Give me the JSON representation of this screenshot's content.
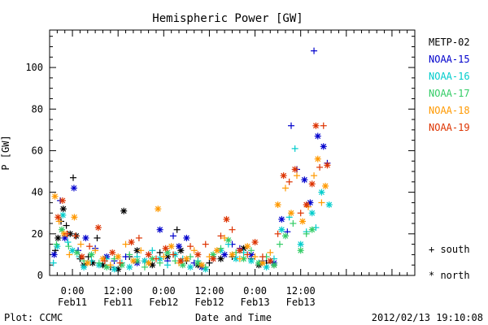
{
  "chart_data": {
    "type": "scatter",
    "title": "Hemispheric Power [GW]",
    "ylabel": "P [GW]",
    "xlabel": "Date and Time",
    "ylim": [
      0,
      118
    ],
    "xlim": [
      -6,
      90
    ],
    "yticks": [
      0,
      20,
      40,
      60,
      80,
      100
    ],
    "xticks": [
      {
        "x": 0,
        "time": "0:00",
        "day": "Feb11"
      },
      {
        "x": 12,
        "time": "12:00",
        "day": "Feb11"
      },
      {
        "x": 24,
        "time": "0:00",
        "day": "Feb12"
      },
      {
        "x": 36,
        "time": "12:00",
        "day": "Feb12"
      },
      {
        "x": 48,
        "time": "0:00",
        "day": "Feb13"
      },
      {
        "x": 60,
        "time": "12:00",
        "day": "Feb13"
      }
    ],
    "x_unit_note": "hours relative to 2012-02-11 00:00 UT",
    "series": [
      {
        "name": "METP-02",
        "color": "#000000",
        "points": [
          [
            -4.5,
            12,
            "s"
          ],
          [
            -3.8,
            18,
            "n"
          ],
          [
            -3,
            26,
            "s"
          ],
          [
            -2.4,
            32,
            "n"
          ],
          [
            -1.6,
            24,
            "s"
          ],
          [
            -0.6,
            20,
            "n"
          ],
          [
            0.2,
            47,
            "s"
          ],
          [
            1,
            19,
            "n"
          ],
          [
            2,
            8,
            "s"
          ],
          [
            3,
            5,
            "n"
          ],
          [
            4.2,
            9,
            "s"
          ],
          [
            5.3,
            6,
            "n"
          ],
          [
            6.5,
            18,
            "s"
          ],
          [
            8,
            5,
            "n"
          ],
          [
            10,
            4,
            "s"
          ],
          [
            12,
            3,
            "n"
          ],
          [
            13.5,
            31,
            "n"
          ],
          [
            15,
            9,
            "s"
          ],
          [
            17,
            12,
            "n"
          ],
          [
            19,
            7,
            "s"
          ],
          [
            21,
            5,
            "n"
          ],
          [
            23,
            11,
            "s"
          ],
          [
            25,
            9,
            "n"
          ],
          [
            27.5,
            22,
            "s"
          ],
          [
            28.5,
            12,
            "n"
          ],
          [
            30,
            7,
            "s"
          ],
          [
            33,
            5,
            "n"
          ],
          [
            36,
            6,
            "s"
          ],
          [
            39,
            8,
            "n"
          ],
          [
            42,
            9,
            "s"
          ],
          [
            45,
            13,
            "n"
          ],
          [
            47,
            8,
            "s"
          ],
          [
            49,
            5,
            "n"
          ],
          [
            51,
            6,
            "s"
          ],
          [
            53,
            5,
            "n"
          ]
        ]
      },
      {
        "name": "NOAA-15",
        "color": "#0000cc",
        "points": [
          [
            -4.8,
            10,
            "n"
          ],
          [
            -3.2,
            36,
            "s"
          ],
          [
            -2,
            18,
            "n"
          ],
          [
            0.4,
            42,
            "n"
          ],
          [
            1.5,
            12,
            "s"
          ],
          [
            3.5,
            18,
            "n"
          ],
          [
            6,
            13,
            "s"
          ],
          [
            9,
            9,
            "n"
          ],
          [
            11,
            7,
            "s"
          ],
          [
            14,
            9,
            "s"
          ],
          [
            17,
            6,
            "n"
          ],
          [
            20,
            10,
            "s"
          ],
          [
            23,
            22,
            "n"
          ],
          [
            25,
            7,
            "s"
          ],
          [
            26.5,
            19,
            "s"
          ],
          [
            28,
            14,
            "n"
          ],
          [
            30,
            18,
            "n"
          ],
          [
            32,
            6,
            "s"
          ],
          [
            34,
            4,
            "n"
          ],
          [
            37,
            8,
            "s"
          ],
          [
            40,
            10,
            "n"
          ],
          [
            42,
            15,
            "s"
          ],
          [
            44,
            13,
            "s"
          ],
          [
            47,
            10,
            "n"
          ],
          [
            50,
            7,
            "s"
          ],
          [
            53,
            6,
            "n"
          ],
          [
            55,
            27,
            "n"
          ],
          [
            56.5,
            21,
            "s"
          ],
          [
            57.5,
            72,
            "s"
          ],
          [
            59,
            51,
            "s"
          ],
          [
            61,
            46,
            "n"
          ],
          [
            62.5,
            35,
            "n"
          ],
          [
            63.5,
            108,
            "s"
          ],
          [
            64.5,
            67,
            "n"
          ],
          [
            66,
            62,
            "n"
          ],
          [
            67,
            54,
            "s"
          ]
        ]
      },
      {
        "name": "NOAA-16",
        "color": "#00cccc",
        "points": [
          [
            -5,
            6,
            "s"
          ],
          [
            -4,
            14,
            "n"
          ],
          [
            -2.5,
            29,
            "n"
          ],
          [
            -1.2,
            16,
            "s"
          ],
          [
            0,
            12,
            "n"
          ],
          [
            1.8,
            9,
            "s"
          ],
          [
            3,
            4,
            "n"
          ],
          [
            5,
            7,
            "s"
          ],
          [
            7,
            5,
            "n"
          ],
          [
            9,
            8,
            "s"
          ],
          [
            11,
            3,
            "n"
          ],
          [
            13,
            6,
            "s"
          ],
          [
            15,
            4,
            "n"
          ],
          [
            17,
            9,
            "s"
          ],
          [
            19,
            7,
            "n"
          ],
          [
            21,
            12,
            "s"
          ],
          [
            23,
            8,
            "n"
          ],
          [
            25,
            5,
            "s"
          ],
          [
            27,
            10,
            "n"
          ],
          [
            29,
            8,
            "s"
          ],
          [
            31,
            4,
            "n"
          ],
          [
            33,
            7,
            "s"
          ],
          [
            35,
            3,
            "n"
          ],
          [
            37,
            9,
            "s"
          ],
          [
            39,
            12,
            "n"
          ],
          [
            41,
            15,
            "s"
          ],
          [
            43,
            8,
            "n"
          ],
          [
            45,
            11,
            "s"
          ],
          [
            47,
            7,
            "n"
          ],
          [
            49,
            6,
            "s"
          ],
          [
            51,
            4,
            "n"
          ],
          [
            53,
            8,
            "s"
          ],
          [
            55,
            22,
            "n"
          ],
          [
            57,
            28,
            "s"
          ],
          [
            58.5,
            61,
            "s"
          ],
          [
            60,
            15,
            "n"
          ],
          [
            61.5,
            21,
            "s"
          ],
          [
            63,
            30,
            "n"
          ],
          [
            64,
            23,
            "s"
          ],
          [
            65.5,
            40,
            "n"
          ],
          [
            67.5,
            34,
            "n"
          ]
        ]
      },
      {
        "name": "NOAA-17",
        "color": "#33cc66",
        "points": [
          [
            -4.2,
            15,
            "s"
          ],
          [
            -2.8,
            22,
            "n"
          ],
          [
            -1,
            14,
            "s"
          ],
          [
            1.2,
            11,
            "n"
          ],
          [
            3,
            7,
            "s"
          ],
          [
            5,
            10,
            "n"
          ],
          [
            7,
            6,
            "s"
          ],
          [
            9,
            4,
            "n"
          ],
          [
            11,
            8,
            "s"
          ],
          [
            13,
            5,
            "n"
          ],
          [
            15,
            10,
            "s"
          ],
          [
            17,
            7,
            "n"
          ],
          [
            19,
            4,
            "s"
          ],
          [
            21,
            8,
            "n"
          ],
          [
            23,
            6,
            "s"
          ],
          [
            25,
            11,
            "n"
          ],
          [
            27,
            7,
            "s"
          ],
          [
            29,
            5,
            "n"
          ],
          [
            31,
            9,
            "s"
          ],
          [
            33,
            6,
            "n"
          ],
          [
            35,
            4,
            "s"
          ],
          [
            37,
            10,
            "n"
          ],
          [
            39,
            13,
            "s"
          ],
          [
            41,
            17,
            "n"
          ],
          [
            43,
            11,
            "s"
          ],
          [
            45,
            8,
            "n"
          ],
          [
            47,
            12,
            "s"
          ],
          [
            49,
            6,
            "n"
          ],
          [
            51,
            9,
            "s"
          ],
          [
            53,
            5,
            "n"
          ],
          [
            54.5,
            15,
            "s"
          ],
          [
            56,
            19,
            "n"
          ],
          [
            58,
            25,
            "s"
          ],
          [
            60,
            12,
            "n"
          ],
          [
            61.5,
            20,
            "s"
          ],
          [
            63,
            22,
            "n"
          ]
        ]
      },
      {
        "name": "NOAA-18",
        "color": "#ff9900",
        "points": [
          [
            -4.6,
            38,
            "n"
          ],
          [
            -3.5,
            26,
            "s"
          ],
          [
            -2.2,
            20,
            "n"
          ],
          [
            -0.8,
            10,
            "s"
          ],
          [
            0.5,
            28,
            "n"
          ],
          [
            2.2,
            15,
            "s"
          ],
          [
            4,
            6,
            "n"
          ],
          [
            6,
            12,
            "s"
          ],
          [
            8,
            8,
            "n"
          ],
          [
            10,
            5,
            "s"
          ],
          [
            12,
            9,
            "n"
          ],
          [
            14,
            15,
            "s"
          ],
          [
            16,
            7,
            "n"
          ],
          [
            18,
            12,
            "s"
          ],
          [
            20,
            6,
            "n"
          ],
          [
            22.5,
            32,
            "n"
          ],
          [
            24,
            9,
            "s"
          ],
          [
            26,
            14,
            "n"
          ],
          [
            28,
            6,
            "s"
          ],
          [
            30,
            8,
            "n"
          ],
          [
            32,
            12,
            "s"
          ],
          [
            34,
            5,
            "n"
          ],
          [
            36,
            9,
            "s"
          ],
          [
            38,
            12,
            "n"
          ],
          [
            40,
            18,
            "s"
          ],
          [
            42,
            10,
            "n"
          ],
          [
            44,
            8,
            "s"
          ],
          [
            46,
            14,
            "n"
          ],
          [
            48,
            9,
            "s"
          ],
          [
            50,
            6,
            "n"
          ],
          [
            52,
            11,
            "s"
          ],
          [
            54,
            34,
            "n"
          ],
          [
            56,
            42,
            "s"
          ],
          [
            57.5,
            30,
            "n"
          ],
          [
            59,
            48,
            "s"
          ],
          [
            60.5,
            26,
            "n"
          ],
          [
            62,
            33,
            "s"
          ],
          [
            63.5,
            48,
            "s"
          ],
          [
            64.5,
            56,
            "n"
          ],
          [
            65.5,
            35,
            "s"
          ],
          [
            66.5,
            43,
            "n"
          ]
        ]
      },
      {
        "name": "NOAA-19",
        "color": "#dd3300",
        "points": [
          [
            -3.8,
            28,
            "n"
          ],
          [
            -2.6,
            36,
            "n"
          ],
          [
            -1.4,
            20,
            "s"
          ],
          [
            0.8,
            19,
            "s"
          ],
          [
            2.5,
            9,
            "n"
          ],
          [
            4.5,
            14,
            "s"
          ],
          [
            6.8,
            23,
            "n"
          ],
          [
            8.5,
            7,
            "s"
          ],
          [
            10.5,
            11,
            "n"
          ],
          [
            12.5,
            6,
            "s"
          ],
          [
            15.5,
            16,
            "n"
          ],
          [
            17.5,
            18,
            "s"
          ],
          [
            20,
            10,
            "n"
          ],
          [
            22,
            8,
            "s"
          ],
          [
            24.5,
            13,
            "n"
          ],
          [
            26.5,
            10,
            "s"
          ],
          [
            28.5,
            7,
            "n"
          ],
          [
            31,
            14,
            "s"
          ],
          [
            33,
            10,
            "n"
          ],
          [
            35,
            15,
            "s"
          ],
          [
            37,
            8,
            "n"
          ],
          [
            39,
            19,
            "s"
          ],
          [
            40.5,
            27,
            "n"
          ],
          [
            42,
            22,
            "s"
          ],
          [
            44,
            12,
            "n"
          ],
          [
            46,
            10,
            "s"
          ],
          [
            48,
            16,
            "n"
          ],
          [
            50,
            9,
            "s"
          ],
          [
            52,
            7,
            "n"
          ],
          [
            54,
            20,
            "s"
          ],
          [
            55.5,
            48,
            "n"
          ],
          [
            57,
            45,
            "s"
          ],
          [
            58.5,
            51,
            "n"
          ],
          [
            60,
            30,
            "s"
          ],
          [
            61.5,
            34,
            "n"
          ],
          [
            63,
            44,
            "n"
          ],
          [
            64,
            72,
            "n"
          ],
          [
            65,
            52,
            "s"
          ],
          [
            66,
            72,
            "s"
          ],
          [
            67,
            53,
            "n"
          ]
        ]
      }
    ],
    "legend": {
      "placement": "right",
      "marker_south": "+ south",
      "marker_north": "* north"
    }
  },
  "footer": {
    "left": "Plot: CCMC",
    "right": "2012/02/13 19:10:08"
  }
}
